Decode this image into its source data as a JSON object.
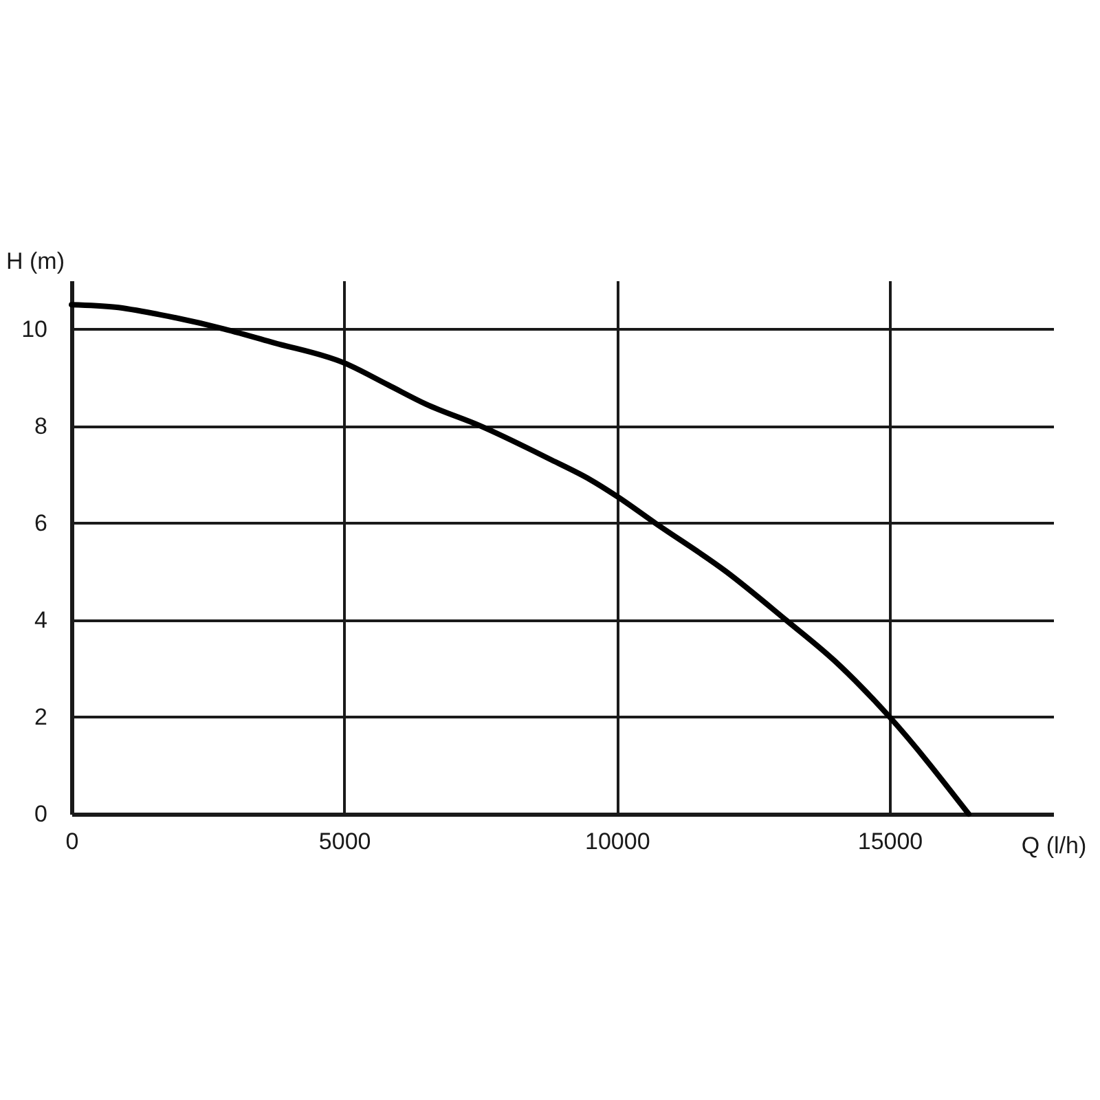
{
  "chart_data": {
    "type": "line",
    "xlabel": "Q (l/h)",
    "ylabel": "H (m)",
    "x": [
      0,
      800,
      1600,
      2800,
      3700,
      5000,
      5800,
      6500,
      7500,
      8800,
      9500,
      10000,
      10700,
      12000,
      13100,
      14000,
      14500,
      15000,
      16450
    ],
    "values": [
      10.5,
      10.45,
      10.3,
      10,
      9.72,
      9.3,
      8.85,
      8.45,
      8,
      7.3,
      6.9,
      6.55,
      6,
      5,
      4,
      3.15,
      2.6,
      2,
      0
    ],
    "color": "#000000",
    "xlim": [
      0,
      18000
    ],
    "ylim": [
      0,
      11
    ],
    "xticks": [
      0,
      5000,
      10000,
      15000
    ],
    "yticks": [
      0,
      2,
      4,
      6,
      8,
      10
    ],
    "grid": true
  }
}
